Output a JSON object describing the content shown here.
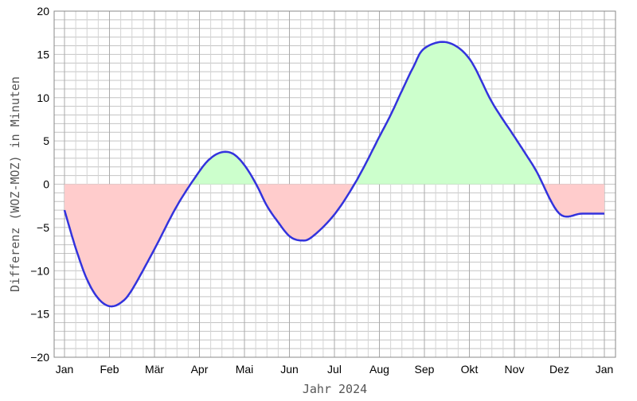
{
  "chart_data": {
    "type": "area",
    "title": "",
    "xlabel": "Jahr 2024",
    "ylabel": "Differenz (WOZ-MOZ) in Minuten",
    "ylim": [
      -20,
      20
    ],
    "yticks": [
      20,
      15,
      10,
      5,
      0,
      -5,
      -10,
      -15,
      -20
    ],
    "ytick_labels": [
      "20",
      "15",
      "10",
      "5",
      "0",
      "−5",
      "−10",
      "−15",
      "−20"
    ],
    "months": [
      "Jan",
      "Feb",
      "Mär",
      "Apr",
      "Mai",
      "Jun",
      "Jul",
      "Aug",
      "Sep",
      "Okt",
      "Nov",
      "Dez",
      "Jan"
    ],
    "grid": true,
    "series": [
      {
        "x_month": [
          0,
          0.25,
          0.5,
          0.75,
          1.0,
          1.25,
          1.5,
          2.0,
          2.5,
          3.0,
          3.25,
          3.5,
          3.75,
          4.0,
          4.25,
          4.5,
          4.75,
          5.0,
          5.25,
          5.5,
          6.0,
          6.5,
          7.0,
          7.25,
          7.5,
          7.75,
          8.0,
          8.5,
          9.0,
          9.5,
          10.0,
          10.25,
          10.5,
          11.0,
          11.5,
          12.0
        ],
        "values": [
          -3.0,
          -7.4,
          -11.0,
          -13.2,
          -14.1,
          -13.7,
          -12.2,
          -7.5,
          -2.5,
          1.5,
          3.0,
          3.7,
          3.5,
          2.2,
          0.1,
          -2.5,
          -4.4,
          -6.0,
          -6.5,
          -6.1,
          -3.5,
          0.5,
          5.5,
          8.0,
          10.8,
          13.5,
          15.7,
          16.4,
          14.5,
          9.5,
          5.5,
          3.5,
          1.4,
          -3.4,
          -3.4,
          -3.4
        ],
        "color": "#3333dd"
      }
    ],
    "fill_positive": "#ccffcc",
    "fill_negative": "#ffcccc"
  }
}
